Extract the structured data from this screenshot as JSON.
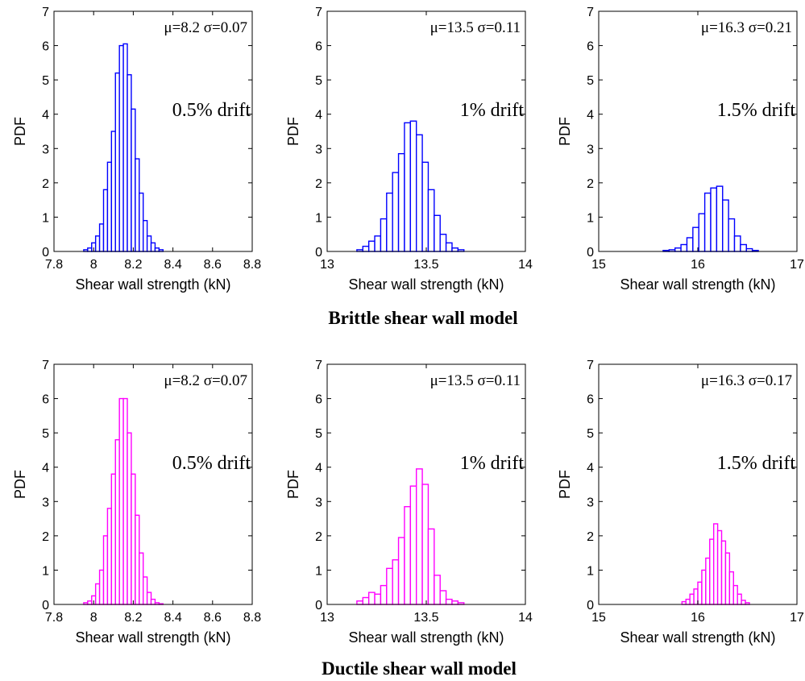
{
  "captions": {
    "brittle": "Brittle shear wall model",
    "ductile": "Ductile shear wall model"
  },
  "colors": {
    "brittle": "#0000ff",
    "ductile": "#ff00ff"
  },
  "chart_data": [
    {
      "type": "bar",
      "group": "brittle",
      "stat_label": "μ=8.2 σ=0.07",
      "drift_label": "0.5% drift",
      "xlabel": "Shear wall strength (kN)",
      "ylabel": "PDF",
      "xlim": [
        7.8,
        8.8
      ],
      "ylim": [
        0,
        7
      ],
      "xticks": [
        "7.8",
        "8",
        "8.2",
        "8.4",
        "8.6",
        "8.8"
      ],
      "yticks": [
        "0",
        "1",
        "2",
        "3",
        "4",
        "5",
        "6",
        "7"
      ],
      "bin_start": 7.95,
      "bin_width": 0.02,
      "values": [
        0.05,
        0.1,
        0.25,
        0.45,
        0.8,
        1.8,
        2.6,
        3.5,
        5.2,
        6.0,
        6.05,
        5.15,
        4.15,
        2.7,
        1.7,
        0.9,
        0.45,
        0.25,
        0.1,
        0.05
      ]
    },
    {
      "type": "bar",
      "group": "brittle",
      "stat_label": "μ=13.5 σ=0.11",
      "drift_label": "1% drift",
      "xlabel": "Shear wall strength (kN)",
      "ylabel": "PDF",
      "xlim": [
        13,
        14
      ],
      "ylim": [
        0,
        7
      ],
      "xticks": [
        "13",
        "13.5",
        "14"
      ],
      "yticks": [
        "0",
        "1",
        "2",
        "3",
        "4",
        "5",
        "6",
        "7"
      ],
      "bin_start": 13.15,
      "bin_width": 0.03,
      "values": [
        0.05,
        0.15,
        0.3,
        0.45,
        0.95,
        1.7,
        2.3,
        2.85,
        3.75,
        3.8,
        3.4,
        2.6,
        1.8,
        1.05,
        0.5,
        0.25,
        0.1,
        0.05
      ]
    },
    {
      "type": "bar",
      "group": "brittle",
      "stat_label": "μ=16.3 σ=0.21",
      "drift_label": "1.5% drift",
      "xlabel": "Shear wall strength (kN)",
      "ylabel": "PDF",
      "xlim": [
        15,
        17
      ],
      "ylim": [
        0,
        7
      ],
      "xticks": [
        "15",
        "16",
        "17"
      ],
      "yticks": [
        "0",
        "1",
        "2",
        "3",
        "4",
        "5",
        "6",
        "7"
      ],
      "bin_start": 15.65,
      "bin_width": 0.06,
      "values": [
        0.03,
        0.05,
        0.1,
        0.2,
        0.4,
        0.7,
        1.1,
        1.7,
        1.85,
        1.9,
        1.5,
        0.95,
        0.45,
        0.2,
        0.08,
        0.03
      ]
    },
    {
      "type": "bar",
      "group": "ductile",
      "stat_label": "μ=8.2 σ=0.07",
      "drift_label": "0.5% drift",
      "xlabel": "Shear wall strength (kN)",
      "ylabel": "PDF",
      "xlim": [
        7.8,
        8.8
      ],
      "ylim": [
        0,
        7
      ],
      "xticks": [
        "7.8",
        "8",
        "8.2",
        "8.4",
        "8.6",
        "8.8"
      ],
      "yticks": [
        "0",
        "1",
        "2",
        "3",
        "4",
        "5",
        "6",
        "7"
      ],
      "bin_start": 7.95,
      "bin_width": 0.02,
      "values": [
        0.05,
        0.1,
        0.25,
        0.6,
        1.0,
        2.0,
        2.8,
        3.8,
        4.8,
        6.0,
        6.0,
        5.0,
        3.8,
        2.6,
        1.5,
        0.8,
        0.35,
        0.15,
        0.05,
        0.02
      ]
    },
    {
      "type": "bar",
      "group": "ductile",
      "stat_label": "μ=13.5 σ=0.11",
      "drift_label": "1% drift",
      "xlabel": "Shear wall strength (kN)",
      "ylabel": "PDF",
      "xlim": [
        13,
        14
      ],
      "ylim": [
        0,
        7
      ],
      "xticks": [
        "13",
        "13.5",
        "14"
      ],
      "yticks": [
        "0",
        "1",
        "2",
        "3",
        "4",
        "5",
        "6",
        "7"
      ],
      "bin_start": 13.15,
      "bin_width": 0.03,
      "values": [
        0.1,
        0.2,
        0.35,
        0.3,
        0.55,
        1.05,
        1.3,
        1.95,
        2.85,
        3.45,
        3.95,
        3.5,
        2.2,
        0.85,
        0.4,
        0.15,
        0.1,
        0.05
      ]
    },
    {
      "type": "bar",
      "group": "ductile",
      "stat_label": "μ=16.3 σ=0.17",
      "drift_label": "1.5% drift",
      "xlabel": "Shear wall strength (kN)",
      "ylabel": "PDF",
      "xlim": [
        15,
        17
      ],
      "ylim": [
        0,
        7
      ],
      "xticks": [
        "15",
        "16",
        "17"
      ],
      "yticks": [
        "0",
        "1",
        "2",
        "3",
        "4",
        "5",
        "6",
        "7"
      ],
      "bin_start": 15.84,
      "bin_width": 0.04,
      "values": [
        0.08,
        0.15,
        0.3,
        0.45,
        0.65,
        1.0,
        1.35,
        1.9,
        2.35,
        2.15,
        1.85,
        1.5,
        0.95,
        0.55,
        0.3,
        0.12,
        0.05
      ]
    }
  ]
}
